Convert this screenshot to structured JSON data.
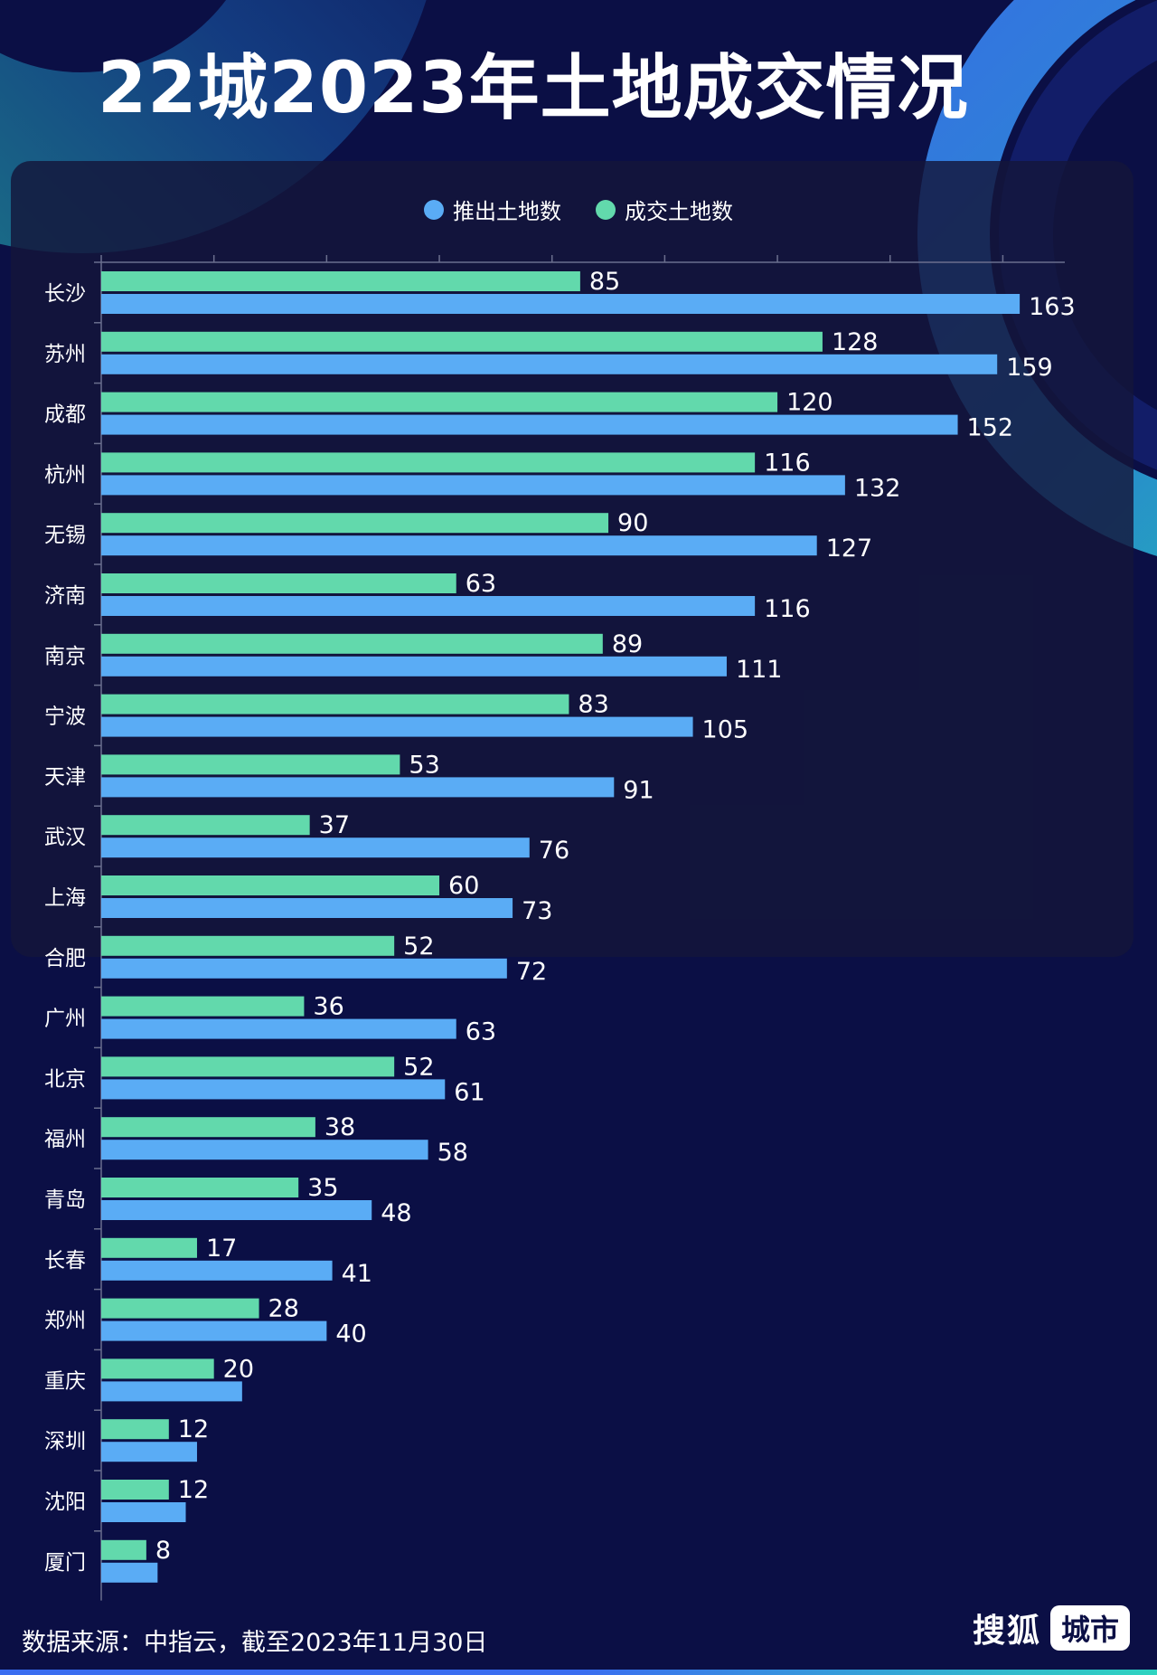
{
  "title": "22城2023年土地成交情况",
  "source": "数据来源：中指云，截至2023年11月30日",
  "brand": {
    "name": "搜狐",
    "tag": "城市"
  },
  "colors": {
    "launched": "#5aacf5",
    "sold": "#62d9ac",
    "background": "#0b0f45"
  },
  "chart_data": {
    "type": "bar",
    "orientation": "horizontal",
    "categories": [
      "长沙",
      "苏州",
      "成都",
      "杭州",
      "无锡",
      "济南",
      "南京",
      "宁波",
      "天津",
      "武汉",
      "上海",
      "合肥",
      "广州",
      "北京",
      "福州",
      "青岛",
      "长春",
      "郑州",
      "重庆",
      "深圳",
      "沈阳",
      "厦门"
    ],
    "series": [
      {
        "name": "推出土地数",
        "values": [
          163,
          159,
          152,
          132,
          127,
          116,
          111,
          105,
          91,
          76,
          73,
          72,
          63,
          61,
          58,
          48,
          41,
          40,
          25,
          17,
          15,
          10
        ]
      },
      {
        "name": "成交土地数",
        "values": [
          85,
          128,
          120,
          116,
          90,
          63,
          89,
          83,
          53,
          37,
          60,
          52,
          36,
          52,
          38,
          35,
          17,
          28,
          20,
          12,
          12,
          8
        ]
      }
    ],
    "shown_value_labels": {
      "推出土地数": [
        "163",
        "159",
        "152",
        "132",
        "127",
        "116",
        "111",
        "105",
        "91",
        "76",
        "73",
        "72",
        "63",
        "61",
        "58",
        "48",
        "41",
        "40",
        "",
        "",
        "",
        ""
      ],
      "成交土地数": [
        "85",
        "128",
        "120",
        "116",
        "90",
        "63",
        "89",
        "83",
        "53",
        "37",
        "60",
        "52",
        "36",
        "52",
        "38",
        "35",
        "17",
        "28",
        "20",
        "12",
        "12",
        "8"
      ]
    },
    "xlim": [
      0,
      171
    ],
    "legend": "top-center",
    "grid": false
  }
}
